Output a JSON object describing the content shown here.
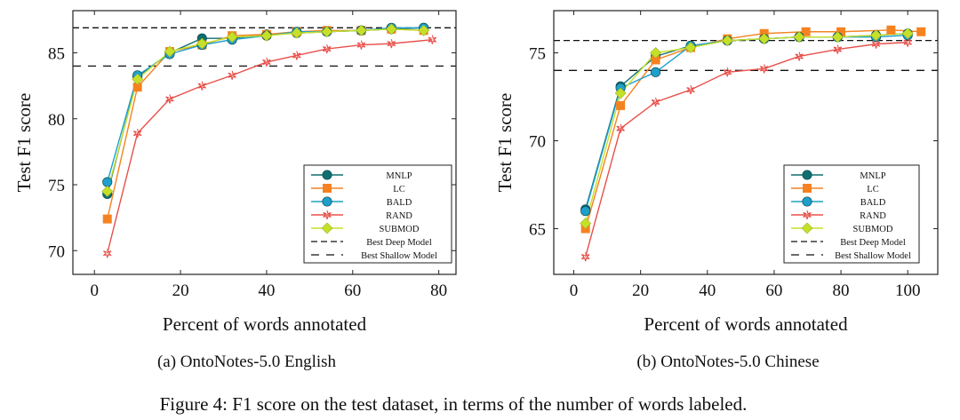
{
  "figure_caption": "Figure 4: F1 score on the test dataset, in terms of the number of words labeled.",
  "legend_entries": [
    "MNLP",
    "LC",
    "BALD",
    "RAND",
    "SUBMOD",
    "Best Deep Model",
    "Best Shallow Model"
  ],
  "series_styles": {
    "MNLP": {
      "color": "#0f6e6e",
      "marker": "circle"
    },
    "LC": {
      "color": "#f58220",
      "marker": "square"
    },
    "BALD": {
      "color": "#1fa0cc",
      "marker": "circle"
    },
    "RAND": {
      "color": "#e8504a",
      "marker": "star"
    },
    "SUBMOD": {
      "color": "#c6e02a",
      "marker": "diamond"
    }
  },
  "chart_data": [
    {
      "type": "line",
      "subcaption": "(a) OntoNotes-5.0 English",
      "xlabel": "Percent of words annotated",
      "ylabel": "Test F1 score",
      "xlim": [
        -5,
        84
      ],
      "ylim": [
        68.2,
        88.2
      ],
      "xticks": [
        0,
        20,
        40,
        60,
        80
      ],
      "yticks": [
        70,
        75,
        80,
        85
      ],
      "reference_lines": [
        {
          "name": "Best Deep Model",
          "y": 86.9
        },
        {
          "name": "Best Shallow Model",
          "y": 84.0
        }
      ],
      "series": [
        {
          "name": "MNLP",
          "x": [
            3,
            10,
            17.5,
            25,
            32,
            40,
            47,
            54,
            62,
            69,
            76.5
          ],
          "y": [
            74.3,
            83.2,
            85.0,
            86.1,
            86.1,
            86.4,
            86.5,
            86.6,
            86.7,
            86.8,
            86.9
          ]
        },
        {
          "name": "LC",
          "x": [
            3,
            10,
            17.5,
            25,
            32,
            40,
            47,
            54,
            62,
            69,
            76.5
          ],
          "y": [
            72.4,
            82.4,
            85.1,
            85.6,
            86.3,
            86.4,
            86.6,
            86.7,
            86.7,
            86.8,
            86.7
          ]
        },
        {
          "name": "BALD",
          "x": [
            3,
            10,
            17.5,
            25,
            32,
            40,
            47,
            54,
            62,
            69,
            76.5
          ],
          "y": [
            75.2,
            83.3,
            84.9,
            85.6,
            86.0,
            86.3,
            86.6,
            86.6,
            86.7,
            86.9,
            86.9
          ]
        },
        {
          "name": "RAND",
          "x": [
            3,
            10,
            17.5,
            25,
            32,
            40,
            47,
            54,
            62,
            69,
            78.5
          ],
          "y": [
            69.8,
            78.9,
            81.5,
            82.5,
            83.3,
            84.3,
            84.8,
            85.3,
            85.6,
            85.7,
            86.0
          ]
        },
        {
          "name": "SUBMOD",
          "x": [
            3,
            10,
            17.5,
            25,
            32,
            40,
            47,
            54,
            62,
            69,
            76.5
          ],
          "y": [
            74.5,
            83.0,
            85.1,
            85.7,
            86.2,
            86.3,
            86.5,
            86.6,
            86.7,
            86.8,
            86.7
          ]
        }
      ]
    },
    {
      "type": "line",
      "subcaption": "(b) OntoNotes-5.0 Chinese",
      "xlabel": "Percent of words annotated",
      "ylabel": "Test F1 score",
      "xlim": [
        -6,
        109
      ],
      "ylim": [
        62.4,
        77.4
      ],
      "xticks": [
        0,
        20,
        40,
        60,
        80,
        100
      ],
      "yticks": [
        65,
        70,
        75
      ],
      "reference_lines": [
        {
          "name": "Best Deep Model",
          "y": 75.7
        },
        {
          "name": "Best Shallow Model",
          "y": 74.0
        }
      ],
      "series": [
        {
          "name": "MNLP",
          "x": [
            3.5,
            14,
            24.5,
            35,
            46,
            57,
            67.5,
            79,
            90.5,
            100
          ],
          "y": [
            66.1,
            73.1,
            74.8,
            75.4,
            75.7,
            75.8,
            75.9,
            75.9,
            76.0,
            76.1
          ]
        },
        {
          "name": "LC",
          "x": [
            3.5,
            14,
            24.5,
            35,
            46,
            57,
            69.5,
            80,
            95,
            104
          ],
          "y": [
            65.0,
            72.0,
            74.6,
            75.3,
            75.8,
            76.1,
            76.2,
            76.2,
            76.3,
            76.2
          ]
        },
        {
          "name": "BALD",
          "x": [
            3.5,
            14,
            24.5,
            35,
            46,
            57,
            67.5,
            79,
            90.5,
            100
          ],
          "y": [
            66.0,
            73.0,
            73.9,
            75.4,
            75.7,
            75.8,
            75.9,
            75.9,
            75.9,
            76.0
          ]
        },
        {
          "name": "RAND",
          "x": [
            3.5,
            14,
            24.5,
            35,
            46,
            57,
            67.5,
            79,
            90.5,
            100
          ],
          "y": [
            63.4,
            70.7,
            72.2,
            72.9,
            73.9,
            74.1,
            74.8,
            75.2,
            75.5,
            75.6
          ]
        },
        {
          "name": "SUBMOD",
          "x": [
            3.5,
            14,
            24.5,
            35,
            46,
            57,
            67.5,
            79,
            90.5,
            100
          ],
          "y": [
            65.3,
            72.7,
            75.0,
            75.3,
            75.7,
            75.8,
            75.9,
            75.9,
            76.0,
            76.1
          ]
        }
      ]
    }
  ]
}
